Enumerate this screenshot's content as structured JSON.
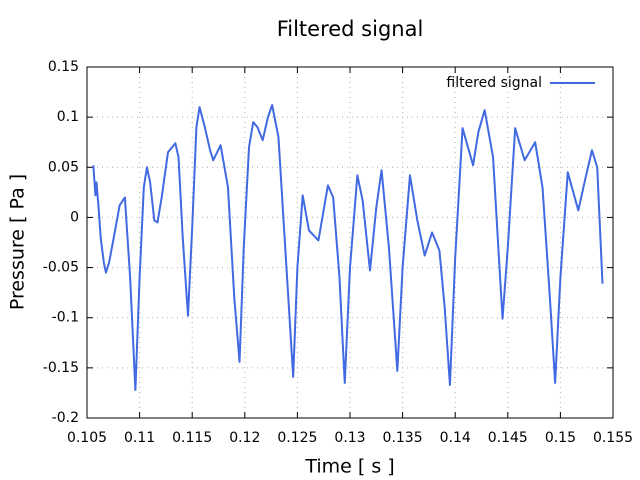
{
  "chart_data": {
    "type": "line",
    "title": "Filtered signal",
    "xlabel": "Time [ s ]",
    "ylabel": "Pressure [ Pa ]",
    "xlim": [
      0.105,
      0.155
    ],
    "ylim": [
      -0.2,
      0.15
    ],
    "xticks": [
      0.105,
      0.11,
      0.115,
      0.12,
      0.125,
      0.13,
      0.135,
      0.14,
      0.145,
      0.15,
      0.155
    ],
    "yticks": [
      -0.2,
      -0.15,
      -0.1,
      -0.05,
      0,
      0.05,
      0.1,
      0.15
    ],
    "grid": true,
    "legend": "top-right",
    "series": [
      {
        "name": "filtered signal",
        "color": "#4169e1",
        "x": [
          0.1056,
          0.1058,
          0.1059,
          0.1061,
          0.1063,
          0.1066,
          0.1068,
          0.1071,
          0.1076,
          0.1081,
          0.1086,
          0.1091,
          0.1096,
          0.11,
          0.1104,
          0.1107,
          0.111,
          0.1114,
          0.1117,
          0.1121,
          0.1127,
          0.1134,
          0.1137,
          0.1141,
          0.1146,
          0.115,
          0.1154,
          0.1157,
          0.1162,
          0.1167,
          0.117,
          0.1177,
          0.1184,
          0.119,
          0.1195,
          0.1199,
          0.1204,
          0.1208,
          0.1212,
          0.1217,
          0.1222,
          0.1226,
          0.1232,
          0.1239,
          0.1246,
          0.125,
          0.1255,
          0.1261,
          0.127,
          0.1279,
          0.1284,
          0.129,
          0.1295,
          0.13,
          0.1307,
          0.1312,
          0.1319,
          0.1325,
          0.133,
          0.1337,
          0.1345,
          0.135,
          0.1357,
          0.1364,
          0.1371,
          0.1378,
          0.1385,
          0.139,
          0.1395,
          0.14,
          0.1407,
          0.1417,
          0.1422,
          0.1428,
          0.1436,
          0.1441,
          0.1445,
          0.145,
          0.1457,
          0.1466,
          0.1476,
          0.1483,
          0.149,
          0.1495,
          0.15,
          0.1507,
          0.1517,
          0.1524,
          0.153,
          0.1535,
          0.154
        ],
        "values": [
          0.052,
          0.022,
          0.035,
          0.01,
          -0.02,
          -0.045,
          -0.055,
          -0.045,
          -0.017,
          0.012,
          0.02,
          -0.06,
          -0.172,
          -0.06,
          0.03,
          0.05,
          0.035,
          -0.003,
          -0.005,
          0.02,
          0.065,
          0.074,
          0.06,
          -0.02,
          -0.098,
          -0.01,
          0.09,
          0.11,
          0.09,
          0.067,
          0.057,
          0.072,
          0.03,
          -0.08,
          -0.144,
          -0.03,
          0.07,
          0.095,
          0.09,
          0.077,
          0.1,
          0.112,
          0.08,
          -0.04,
          -0.159,
          -0.05,
          0.022,
          -0.013,
          -0.023,
          0.032,
          0.02,
          -0.06,
          -0.165,
          -0.05,
          0.042,
          0.017,
          -0.053,
          0.01,
          0.047,
          -0.03,
          -0.153,
          -0.05,
          0.042,
          -0.003,
          -0.038,
          -0.015,
          -0.033,
          -0.09,
          -0.167,
          -0.04,
          0.089,
          0.052,
          0.085,
          0.107,
          0.06,
          -0.03,
          -0.101,
          -0.03,
          0.089,
          0.057,
          0.075,
          0.03,
          -0.08,
          -0.165,
          -0.06,
          0.045,
          0.007,
          0.04,
          0.067,
          0.05,
          -0.066
        ]
      }
    ]
  }
}
